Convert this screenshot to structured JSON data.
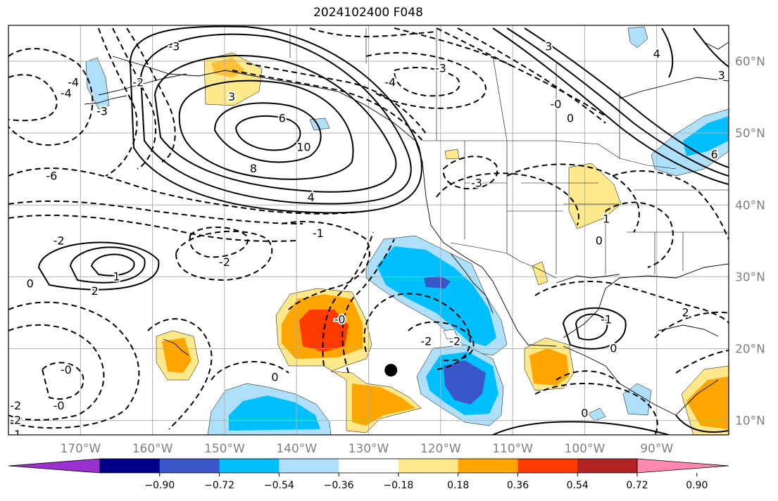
{
  "title": "2024102400 F048",
  "map": {
    "lon_labels": [
      "170°W",
      "160°W",
      "150°W",
      "140°W",
      "130°W",
      "120°W",
      "110°W",
      "100°W",
      "90°W"
    ],
    "lat_labels": [
      "60°N",
      "50°N",
      "40°N",
      "30°N",
      "20°N",
      "10°N"
    ],
    "lon_range": [
      -180,
      -80
    ],
    "lat_range": [
      8,
      65
    ],
    "grid": true,
    "marker": {
      "name": "storm-position",
      "lon": -126.9,
      "lat": 17.0
    }
  },
  "contour_labels": [
    {
      "text": "-4",
      "lon": -171,
      "lat": 57
    },
    {
      "text": "-4",
      "lon": -172,
      "lat": 55.5
    },
    {
      "text": "-3",
      "lon": -167,
      "lat": 53
    },
    {
      "text": "-2",
      "lon": -162,
      "lat": 57
    },
    {
      "text": "-3",
      "lon": -157,
      "lat": 62
    },
    {
      "text": "-6",
      "lon": -174,
      "lat": 44
    },
    {
      "text": "-2",
      "lon": -173,
      "lat": 35
    },
    {
      "text": "-2",
      "lon": -150,
      "lat": 32
    },
    {
      "text": "-1",
      "lon": -137,
      "lat": 36
    },
    {
      "text": "-2",
      "lon": -179,
      "lat": 12
    },
    {
      "text": "-2",
      "lon": -179,
      "lat": 10
    },
    {
      "text": "-1",
      "lon": -179,
      "lat": 8
    },
    {
      "text": "-0",
      "lon": -173,
      "lat": 12
    },
    {
      "text": "0",
      "lon": -143,
      "lat": 16
    },
    {
      "text": "0",
      "lon": -177,
      "lat": 29
    },
    {
      "text": "1",
      "lon": -165,
      "lat": 30
    },
    {
      "text": "2",
      "lon": -168,
      "lat": 28
    },
    {
      "text": "3",
      "lon": -149,
      "lat": 55
    },
    {
      "text": "6",
      "lon": -142,
      "lat": 52
    },
    {
      "text": "10",
      "lon": -139,
      "lat": 48
    },
    {
      "text": "8",
      "lon": -146,
      "lat": 45
    },
    {
      "text": "4",
      "lon": -138,
      "lat": 41
    },
    {
      "text": "-4",
      "lon": -127,
      "lat": 57
    },
    {
      "text": "-3",
      "lon": -120,
      "lat": 59
    },
    {
      "text": "3",
      "lon": -105,
      "lat": 62
    },
    {
      "text": "-0",
      "lon": -104,
      "lat": 54
    },
    {
      "text": "0",
      "lon": -102,
      "lat": 52
    },
    {
      "text": "4",
      "lon": -90,
      "lat": 61
    },
    {
      "text": "3",
      "lon": -81,
      "lat": 58
    },
    {
      "text": "-3",
      "lon": -115,
      "lat": 43
    },
    {
      "text": "1",
      "lon": -97,
      "lat": 38
    },
    {
      "text": "0",
      "lon": -98,
      "lat": 35
    },
    {
      "text": "-0",
      "lon": -134,
      "lat": 24
    },
    {
      "text": "-2",
      "lon": -122,
      "lat": 21
    },
    {
      "text": "-2",
      "lon": -118,
      "lat": 21
    },
    {
      "text": "-1",
      "lon": -97,
      "lat": 24
    },
    {
      "text": "0",
      "lon": -96,
      "lat": 20
    },
    {
      "text": "2",
      "lon": -86,
      "lat": 25
    },
    {
      "text": "0",
      "lon": -100,
      "lat": 11
    },
    {
      "text": "-0",
      "lon": -172,
      "lat": 17
    },
    {
      "text": "6",
      "lon": -82,
      "lat": 47
    }
  ],
  "colorbar": {
    "ticks": [
      "−0.90",
      "−0.72",
      "−0.54",
      "−0.36",
      "−0.18",
      "0.18",
      "0.36",
      "0.54",
      "0.72",
      "0.90"
    ],
    "colors": [
      "#9b30d0",
      "#00008b",
      "#3a56c8",
      "#00bfff",
      "#aee0fb",
      "#ffffff",
      "#ffe98a",
      "#ffa500",
      "#ff3a00",
      "#b22222",
      "#ff88b0"
    ]
  },
  "colors": {
    "lt_blue": "#aee0fb",
    "blue": "#00bfff",
    "mid_blue": "#3a56c8",
    "navy": "#00008b",
    "yellow": "#ffe98a",
    "orange": "#ffa500",
    "red": "#ff3a00"
  }
}
